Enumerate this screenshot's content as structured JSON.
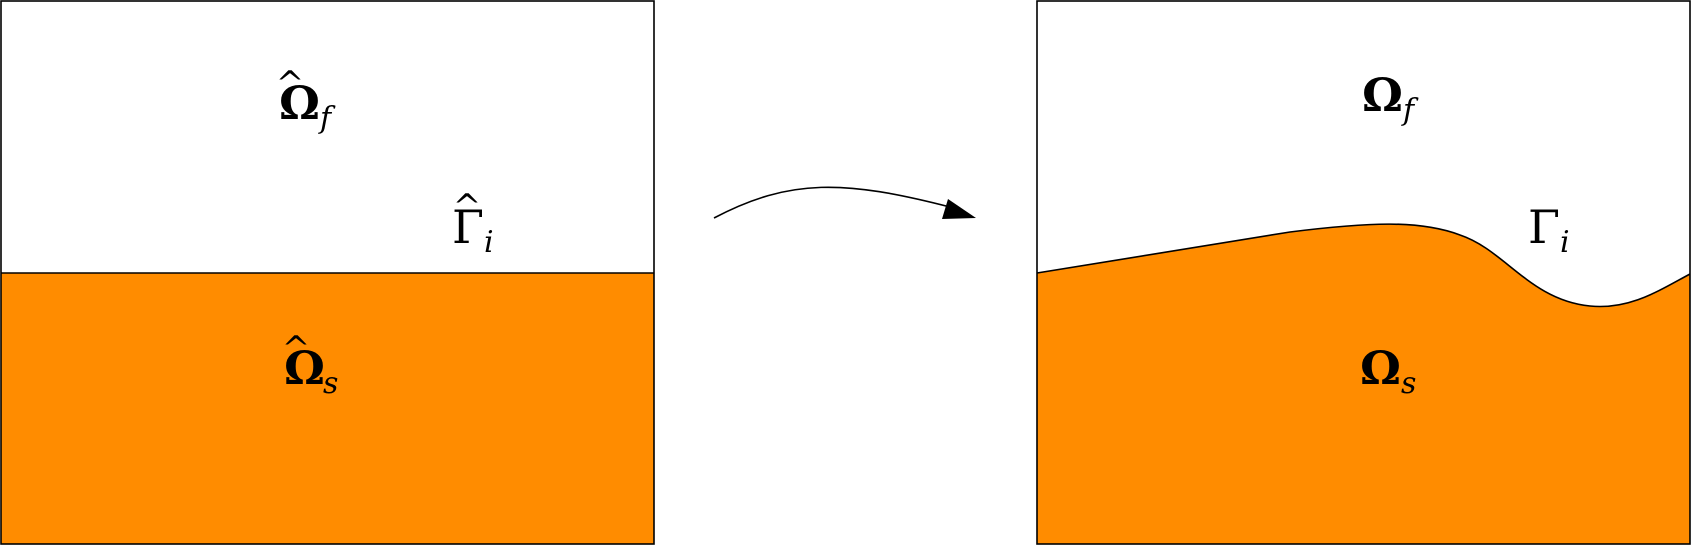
{
  "colors": {
    "solid_fill": "#ff8c00",
    "fluid_fill": "#ffffff",
    "stroke": "#000000"
  },
  "reference_domain": {
    "fluid_label": {
      "symbol": "Ω",
      "hat": "^",
      "subscript": "f"
    },
    "interface_label": {
      "symbol": "Γ",
      "hat": "^",
      "subscript": "i"
    },
    "solid_label": {
      "symbol": "Ω",
      "hat": "^",
      "subscript": "s"
    }
  },
  "current_domain": {
    "fluid_label": {
      "symbol": "Ω",
      "subscript": "f"
    },
    "interface_label": {
      "symbol": "Γ",
      "subscript": "i"
    },
    "solid_label": {
      "symbol": "Ω",
      "subscript": "s"
    }
  },
  "mapping_arrow": {
    "icon": "curved-arrow-right-icon"
  }
}
